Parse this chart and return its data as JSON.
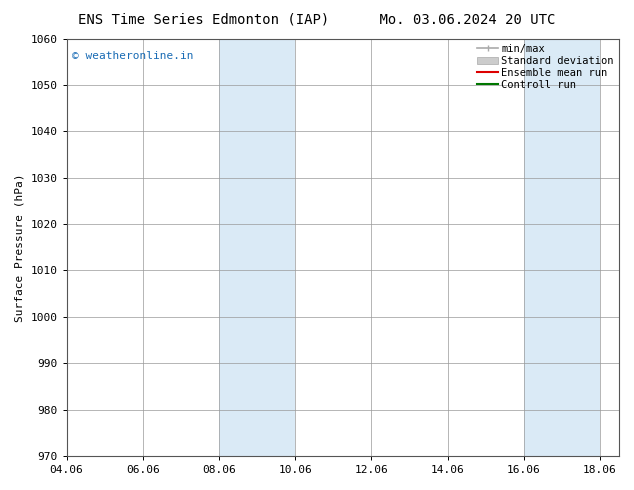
{
  "title_left": "ENS Time Series Edmonton (IAP)",
  "title_right": "Mo. 03.06.2024 20 UTC",
  "ylabel": "Surface Pressure (hPa)",
  "ylim": [
    970,
    1060
  ],
  "yticks": [
    970,
    980,
    990,
    1000,
    1010,
    1020,
    1030,
    1040,
    1050,
    1060
  ],
  "xlim": [
    0,
    14.5
  ],
  "xtick_labels": [
    "04.06",
    "06.06",
    "08.06",
    "10.06",
    "12.06",
    "14.06",
    "16.06",
    "18.06"
  ],
  "xtick_positions": [
    0,
    2,
    4,
    6,
    8,
    10,
    12,
    14
  ],
  "shaded_bands": [
    {
      "xstart": 4,
      "xend": 6
    },
    {
      "xstart": 12,
      "xend": 14
    }
  ],
  "shaded_color": "#daeaf6",
  "watermark_text": "© weatheronline.in",
  "watermark_color": "#1a6cb5",
  "legend_entries": [
    {
      "label": "min/max",
      "type": "minmax",
      "color": "#aaaaaa"
    },
    {
      "label": "Standard deviation",
      "type": "band",
      "color": "#cccccc"
    },
    {
      "label": "Ensemble mean run",
      "type": "line",
      "color": "#dd0000"
    },
    {
      "label": "Controll run",
      "type": "line",
      "color": "#007700"
    }
  ],
  "background_color": "#ffffff",
  "grid_color": "#999999",
  "spine_color": "#555555",
  "title_fontsize": 10,
  "axis_label_fontsize": 8,
  "tick_fontsize": 8,
  "legend_fontsize": 7.5,
  "watermark_fontsize": 8
}
